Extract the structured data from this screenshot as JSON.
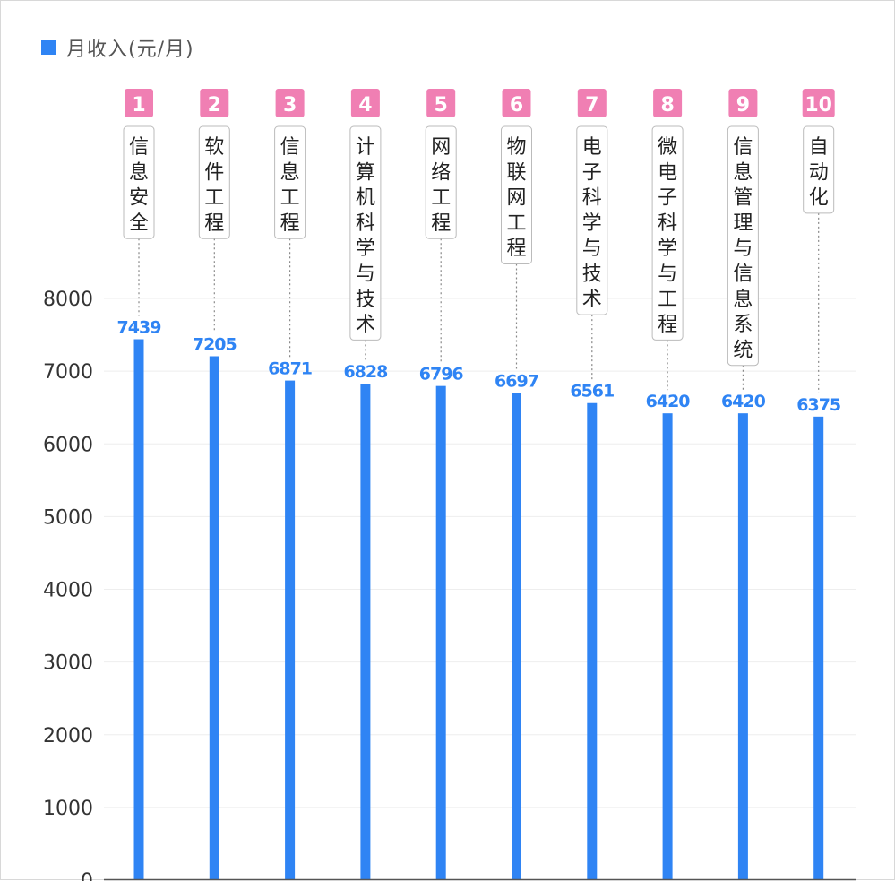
{
  "chart_data": {
    "type": "bar",
    "title": "",
    "xlabel": "",
    "ylabel": "",
    "legend": {
      "position": "top-left",
      "label": "月收入(元/月)"
    },
    "colors": {
      "bar": "#2f84f4",
      "value_label": "#2f84f4",
      "rank_badge": "#f07fb3",
      "axis_text": "#333333",
      "grid": "#eeeeee",
      "leader_line": "#888888"
    },
    "ylim": [
      0,
      8000
    ],
    "yticks": [
      0,
      1000,
      2000,
      3000,
      4000,
      5000,
      6000,
      7000,
      8000
    ],
    "grid": true,
    "categories": [
      "信息安全",
      "软件工程",
      "信息工程",
      "计算机科学与技术",
      "网络工程",
      "物联网工程",
      "电子科学与技术",
      "微电子科学与工程",
      "信息管理与信息系统",
      "自动化"
    ],
    "ranks": [
      "1",
      "2",
      "3",
      "4",
      "5",
      "6",
      "7",
      "8",
      "9",
      "10"
    ],
    "series": [
      {
        "name": "月收入(元/月)",
        "values": [
          7439,
          7205,
          6871,
          6828,
          6796,
          6697,
          6561,
          6420,
          6420,
          6375
        ]
      }
    ]
  }
}
